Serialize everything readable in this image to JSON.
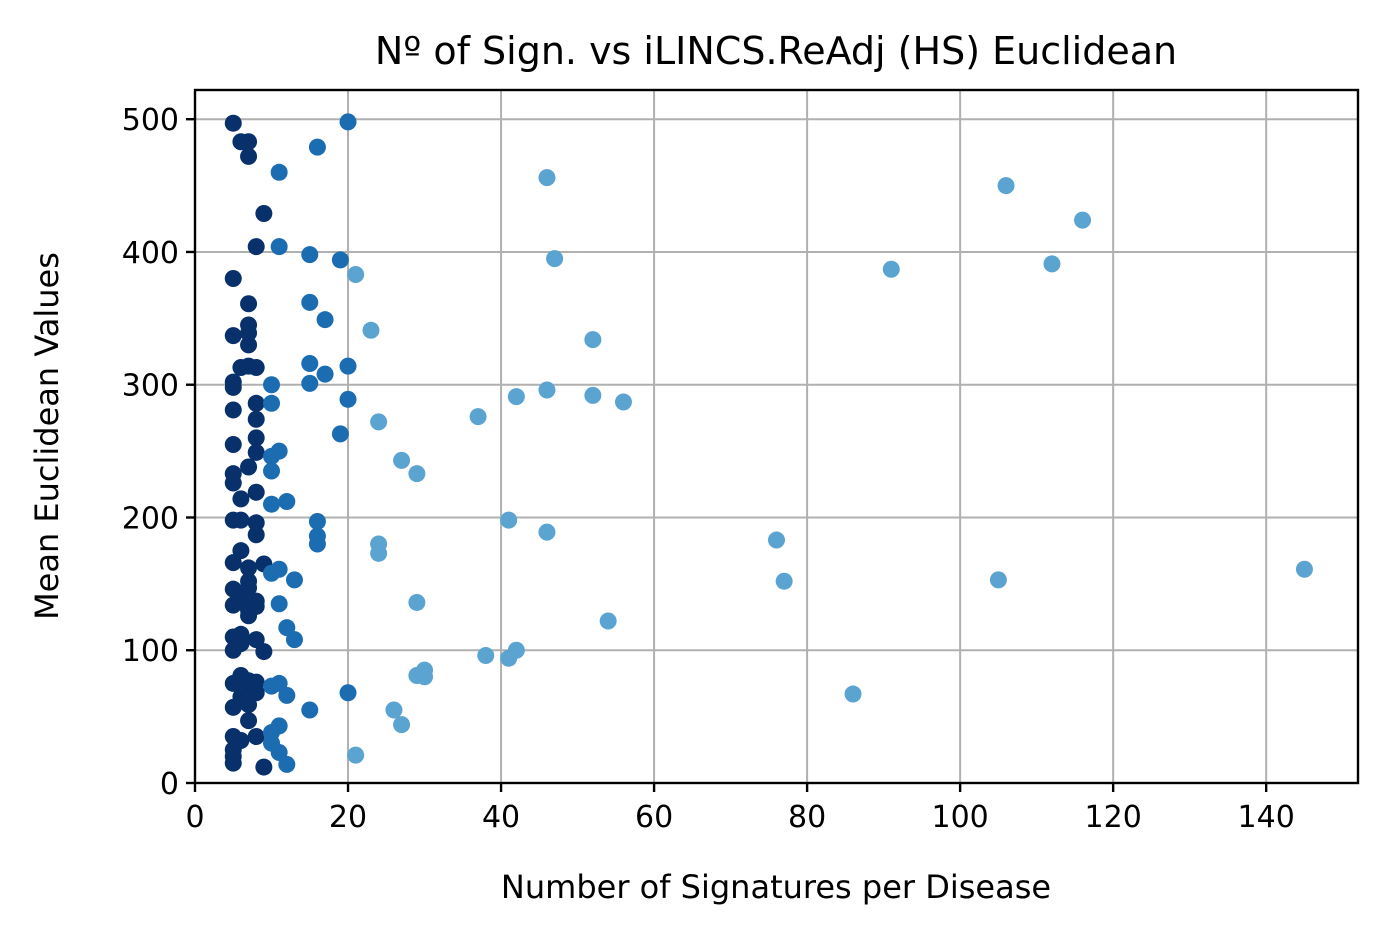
{
  "chart_data": {
    "type": "scatter",
    "title": "Nº of Sign. vs iLINCS.ReAdj (HS) Euclidean",
    "xlabel": "Number of Signatures per Disease",
    "ylabel": "Mean Euclidean Values",
    "xlim": [
      0,
      152
    ],
    "ylim": [
      0,
      522
    ],
    "xticks": [
      0,
      20,
      40,
      60,
      80,
      100,
      120,
      140
    ],
    "yticks": [
      0,
      100,
      200,
      300,
      400,
      500
    ],
    "grid": true,
    "colors": {
      "dark": "#08306b",
      "mid": "#1c6cb1",
      "light": "#5ba3d0"
    },
    "points": [
      [
        5,
        497
      ],
      [
        6,
        483
      ],
      [
        7,
        483
      ],
      [
        7,
        472
      ],
      [
        11,
        460
      ],
      [
        16,
        479
      ],
      [
        20,
        498
      ],
      [
        9,
        429
      ],
      [
        8,
        404
      ],
      [
        11,
        404
      ],
      [
        15,
        398
      ],
      [
        19,
        394
      ],
      [
        21,
        383
      ],
      [
        5,
        380
      ],
      [
        7,
        361
      ],
      [
        15,
        362
      ],
      [
        17,
        349
      ],
      [
        7,
        345
      ],
      [
        7,
        339
      ],
      [
        5,
        337
      ],
      [
        23,
        341
      ],
      [
        7,
        330
      ],
      [
        6,
        313
      ],
      [
        7,
        314
      ],
      [
        8,
        313
      ],
      [
        15,
        316
      ],
      [
        20,
        314
      ],
      [
        17,
        308
      ],
      [
        5,
        302
      ],
      [
        5,
        298
      ],
      [
        10,
        300
      ],
      [
        15,
        301
      ],
      [
        20,
        289
      ],
      [
        8,
        286
      ],
      [
        10,
        286
      ],
      [
        5,
        281
      ],
      [
        8,
        274
      ],
      [
        24,
        272
      ],
      [
        8,
        260
      ],
      [
        5,
        255
      ],
      [
        11,
        250
      ],
      [
        8,
        249
      ],
      [
        19,
        263
      ],
      [
        10,
        246
      ],
      [
        7,
        238
      ],
      [
        10,
        235
      ],
      [
        27,
        243
      ],
      [
        5,
        233
      ],
      [
        5,
        226
      ],
      [
        29,
        233
      ],
      [
        8,
        219
      ],
      [
        6,
        214
      ],
      [
        12,
        212
      ],
      [
        10,
        210
      ],
      [
        5,
        198
      ],
      [
        6,
        198
      ],
      [
        8,
        196
      ],
      [
        8,
        187
      ],
      [
        16,
        197
      ],
      [
        16,
        186
      ],
      [
        16,
        180
      ],
      [
        24,
        180
      ],
      [
        24,
        173
      ],
      [
        6,
        175
      ],
      [
        5,
        166
      ],
      [
        7,
        162
      ],
      [
        9,
        165
      ],
      [
        11,
        161
      ],
      [
        10,
        158
      ],
      [
        7,
        152
      ],
      [
        13,
        153
      ],
      [
        5,
        146
      ],
      [
        7,
        147
      ],
      [
        6,
        140
      ],
      [
        8,
        137
      ],
      [
        8,
        133
      ],
      [
        5,
        134
      ],
      [
        7,
        130
      ],
      [
        11,
        135
      ],
      [
        6,
        112
      ],
      [
        12,
        117
      ],
      [
        7,
        126
      ],
      [
        5,
        110
      ],
      [
        6,
        105
      ],
      [
        8,
        108
      ],
      [
        13,
        108
      ],
      [
        5,
        100
      ],
      [
        9,
        99
      ],
      [
        6,
        81
      ],
      [
        7,
        77
      ],
      [
        8,
        76
      ],
      [
        11,
        75
      ],
      [
        5,
        75
      ],
      [
        7,
        70
      ],
      [
        10,
        73
      ],
      [
        8,
        68
      ],
      [
        6,
        65
      ],
      [
        12,
        66
      ],
      [
        5,
        57
      ],
      [
        7,
        59
      ],
      [
        15,
        55
      ],
      [
        20,
        68
      ],
      [
        7,
        47
      ],
      [
        11,
        43
      ],
      [
        8,
        35
      ],
      [
        10,
        38
      ],
      [
        5,
        35
      ],
      [
        6,
        32
      ],
      [
        10,
        30
      ],
      [
        5,
        25
      ],
      [
        11,
        23
      ],
      [
        5,
        20
      ],
      [
        5,
        15
      ],
      [
        9,
        12
      ],
      [
        12,
        14
      ],
      [
        21,
        21
      ],
      [
        26,
        55
      ],
      [
        27,
        44
      ],
      [
        29,
        81
      ],
      [
        30,
        85
      ],
      [
        30,
        80
      ],
      [
        29,
        136
      ],
      [
        38,
        96
      ],
      [
        41,
        94
      ],
      [
        42,
        100
      ],
      [
        41,
        198
      ],
      [
        46,
        189
      ],
      [
        37,
        276
      ],
      [
        42,
        291
      ],
      [
        46,
        296
      ],
      [
        52,
        292
      ],
      [
        56,
        287
      ],
      [
        52,
        334
      ],
      [
        47,
        395
      ],
      [
        46,
        456
      ],
      [
        54,
        122
      ],
      [
        76,
        183
      ],
      [
        77,
        152
      ],
      [
        86,
        67
      ],
      [
        91,
        387
      ],
      [
        105,
        153
      ],
      [
        106,
        450
      ],
      [
        112,
        391
      ],
      [
        116,
        424
      ],
      [
        145,
        161
      ]
    ]
  }
}
